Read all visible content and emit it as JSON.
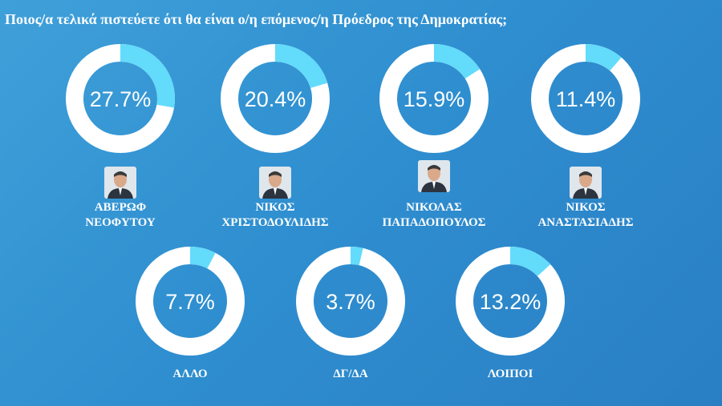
{
  "title": "Ποιος/α τελικά πιστεύετε ότι θα είναι ο/η επόμενος/η Πρόεδρος της Δημοκρατίας;",
  "colors": {
    "ring": "#ffffff",
    "arc": "#63dbfb",
    "background": "#2f8fd0"
  },
  "chart_data": {
    "type": "pie",
    "title": "Ποιος/α τελικά πιστεύετε ότι θα είναι ο/η επόμενος/η Πρόεδρος της Δημοκρατίας;",
    "unit": "%",
    "items": [
      {
        "label_line1": "ΑΒΕΡΩΦ",
        "label_line2": "ΝΕΟΦΥΤΟΥ",
        "value": 27.7,
        "value_label": "27.7%",
        "photo": true
      },
      {
        "label_line1": "ΝΙΚΟΣ",
        "label_line2": "ΧΡΙΣΤΟΔΟΥΛΙΔΗΣ",
        "value": 20.4,
        "value_label": "20.4%",
        "photo": true
      },
      {
        "label_line1": "ΝΙΚΟΛΑΣ",
        "label_line2": "ΠΑΠΑΔΟΠΟΥΛΟΣ",
        "value": 15.9,
        "value_label": "15.9%",
        "photo": true
      },
      {
        "label_line1": "ΝΙΚΟΣ",
        "label_line2": "ΑΝΑΣΤΑΣΙΑΔΗΣ",
        "value": 11.4,
        "value_label": "11.4%",
        "photo": true
      },
      {
        "label_line1": "ΑΛΛΟ",
        "label_line2": "",
        "value": 7.7,
        "value_label": "7.7%",
        "photo": false
      },
      {
        "label_line1": "ΔΓ/ΔΑ",
        "label_line2": "",
        "value": 3.7,
        "value_label": "3.7%",
        "photo": false
      },
      {
        "label_line1": "ΛΟΙΠΟΙ",
        "label_line2": "",
        "value": 13.2,
        "value_label": "13.2%",
        "photo": false
      }
    ]
  }
}
